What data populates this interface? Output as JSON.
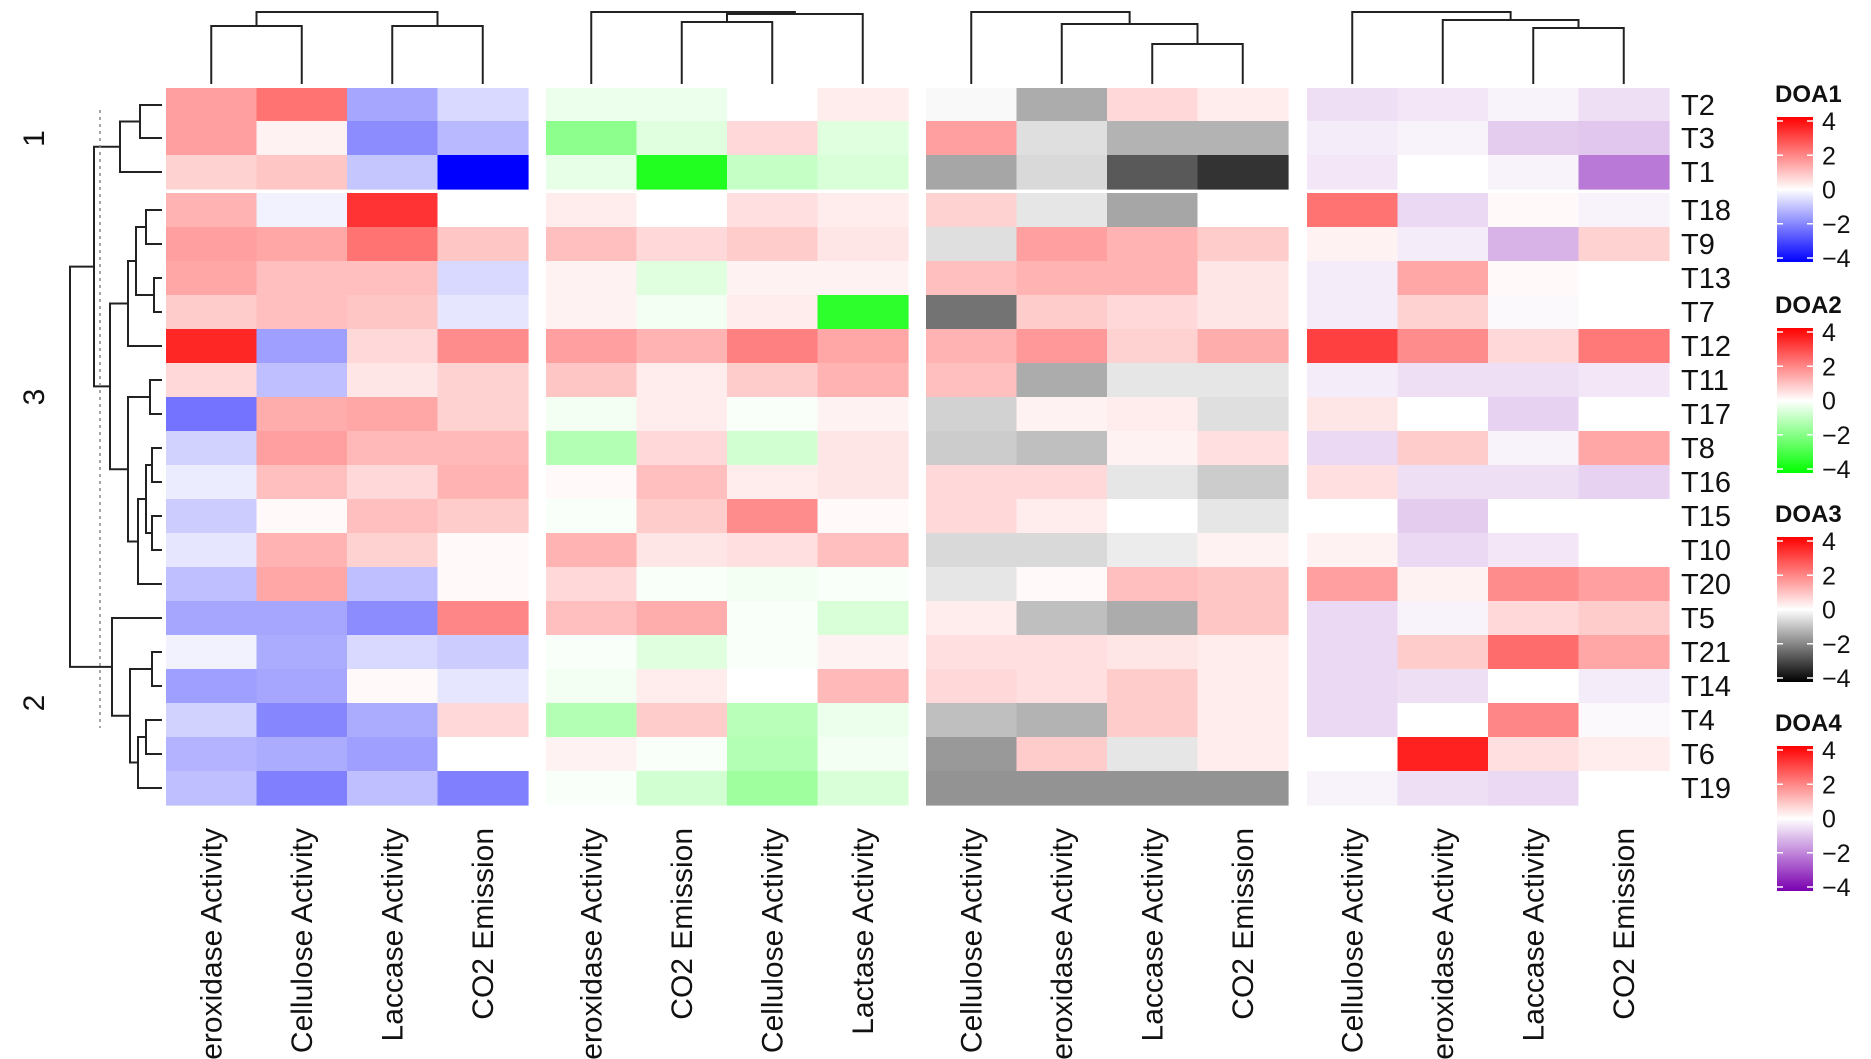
{
  "chart_data": {
    "type": "heatmap",
    "title": "",
    "rows": [
      "T2",
      "T3",
      "T1",
      "T18",
      "T9",
      "T13",
      "T7",
      "T12",
      "T11",
      "T17",
      "T8",
      "T16",
      "T15",
      "T10",
      "T20",
      "T5",
      "T21",
      "T14",
      "T4",
      "T6",
      "T19"
    ],
    "row_clusters": [
      {
        "label": "1",
        "rows": [
          "T2",
          "T3",
          "T1"
        ]
      },
      {
        "label": "3",
        "rows": [
          "T18",
          "T9",
          "T13",
          "T7",
          "T12",
          "T11",
          "T17",
          "T8",
          "T16",
          "T15",
          "T10",
          "T20"
        ]
      },
      {
        "label": "2",
        "rows": [
          "T5",
          "T21",
          "T14",
          "T4",
          "T6",
          "T19"
        ]
      }
    ],
    "panels": [
      {
        "name": "DOA1",
        "columns": [
          "Peroxidase Activity",
          "Cellulose Activity",
          "Laccase Activity",
          "CO2 Emission"
        ],
        "values": [
          [
            1.5,
            2.2,
            -1.4,
            -0.6
          ],
          [
            1.5,
            0.2,
            -1.8,
            -1.1
          ],
          [
            0.7,
            0.9,
            -0.9,
            -4.0
          ],
          [
            1.2,
            -0.2,
            3.2,
            0.0
          ],
          [
            1.5,
            1.4,
            2.2,
            0.9
          ],
          [
            1.4,
            1.0,
            1.0,
            -0.6
          ],
          [
            0.8,
            1.0,
            0.9,
            -0.4
          ],
          [
            3.4,
            -1.5,
            0.6,
            1.8
          ],
          [
            0.6,
            -1.0,
            0.4,
            0.7
          ],
          [
            -2.2,
            1.3,
            1.4,
            0.7
          ],
          [
            -0.7,
            1.5,
            1.1,
            1.1
          ],
          [
            -0.3,
            1.0,
            0.6,
            1.2
          ],
          [
            -0.8,
            0.1,
            1.0,
            0.8
          ],
          [
            -0.4,
            1.2,
            0.7,
            0.1
          ],
          [
            -1.0,
            1.4,
            -1.0,
            0.1
          ],
          [
            -1.4,
            -1.4,
            -1.8,
            1.9
          ],
          [
            -0.2,
            -1.3,
            -0.6,
            -0.8
          ],
          [
            -1.5,
            -1.4,
            0.1,
            -0.4
          ],
          [
            -0.7,
            -1.9,
            -1.3,
            0.6
          ],
          [
            -1.2,
            -1.3,
            -1.5,
            0.0
          ],
          [
            -1.0,
            -2.0,
            -1.0,
            -2.0
          ]
        ]
      },
      {
        "name": "DOA2",
        "columns": [
          "Peroxidase Activity",
          "CO2 Emission",
          "Cellulose Activity",
          "Lactase Activity"
        ],
        "values": [
          [
            -0.3,
            -0.3,
            0.0,
            0.3
          ],
          [
            -1.8,
            -0.5,
            0.6,
            -0.5
          ],
          [
            -0.4,
            -3.5,
            -0.9,
            -0.6
          ],
          [
            0.3,
            0.0,
            0.5,
            0.3
          ],
          [
            1.0,
            0.6,
            0.8,
            0.4
          ],
          [
            0.2,
            -0.5,
            0.2,
            0.2
          ],
          [
            0.2,
            -0.2,
            0.3,
            -3.3
          ],
          [
            1.5,
            1.2,
            2.0,
            1.4
          ],
          [
            0.9,
            0.3,
            0.8,
            1.2
          ],
          [
            -0.2,
            0.3,
            -0.1,
            0.2
          ],
          [
            -1.2,
            0.6,
            -0.7,
            0.4
          ],
          [
            0.1,
            1.0,
            0.3,
            0.4
          ],
          [
            -0.1,
            0.8,
            1.8,
            0.1
          ],
          [
            1.2,
            0.4,
            0.5,
            1.0
          ],
          [
            0.6,
            -0.1,
            -0.2,
            -0.1
          ],
          [
            1.0,
            1.3,
            -0.1,
            -0.6
          ],
          [
            -0.1,
            -0.5,
            -0.1,
            0.2
          ],
          [
            -0.2,
            0.3,
            0.0,
            1.1
          ],
          [
            -1.2,
            0.8,
            -1.1,
            -0.3
          ],
          [
            0.2,
            -0.1,
            -1.2,
            -0.2
          ],
          [
            -0.1,
            -0.7,
            -1.5,
            -0.6
          ]
        ]
      },
      {
        "name": "DOA3",
        "columns": [
          "Cellulose Activity",
          "Peroxidase Activity",
          "Laccase Activity",
          "CO2 Emission"
        ],
        "values": [
          [
            -0.1,
            -1.3,
            0.6,
            0.3
          ],
          [
            1.5,
            -0.5,
            -1.2,
            -1.2
          ],
          [
            -1.4,
            -0.6,
            -2.6,
            -3.2
          ],
          [
            0.7,
            -0.4,
            -1.4,
            0.0
          ],
          [
            -0.5,
            1.5,
            1.2,
            0.8
          ],
          [
            1.0,
            1.2,
            1.2,
            0.4
          ],
          [
            -2.2,
            0.8,
            0.6,
            0.4
          ],
          [
            1.2,
            1.6,
            0.7,
            1.3
          ],
          [
            1.0,
            -1.3,
            -0.4,
            -0.4
          ],
          [
            -0.7,
            0.2,
            0.3,
            -0.5
          ],
          [
            -0.8,
            -1.0,
            0.2,
            0.5
          ],
          [
            0.6,
            0.6,
            -0.4,
            -0.8
          ],
          [
            0.6,
            0.3,
            0.0,
            -0.4
          ],
          [
            -0.6,
            -0.6,
            -0.3,
            0.2
          ],
          [
            -0.4,
            0.1,
            1.0,
            0.9
          ],
          [
            0.3,
            -1.0,
            -1.3,
            0.9
          ],
          [
            0.5,
            0.5,
            0.4,
            0.3
          ],
          [
            0.6,
            0.5,
            0.8,
            0.3
          ],
          [
            -1.0,
            -1.2,
            0.8,
            0.3
          ],
          [
            -1.6,
            0.8,
            -0.4,
            0.3
          ],
          [
            -1.7,
            -1.7,
            -1.7,
            -1.7
          ]
        ]
      },
      {
        "name": "DOA4",
        "columns": [
          "Cellulose Activity",
          "Peroxidase Activity",
          "Laccase Activity",
          "CO2 Emission"
        ],
        "values": [
          [
            -0.5,
            -0.4,
            -0.2,
            -0.5
          ],
          [
            -0.3,
            -0.2,
            -0.8,
            -0.9
          ],
          [
            -0.4,
            0.0,
            -0.2,
            -2.1
          ],
          [
            2.2,
            -0.6,
            0.1,
            -0.2
          ],
          [
            0.2,
            -0.3,
            -1.2,
            0.7
          ],
          [
            -0.3,
            1.4,
            0.1,
            0.0
          ],
          [
            -0.3,
            0.7,
            -0.1,
            0.0
          ],
          [
            3.0,
            1.8,
            0.6,
            2.1
          ],
          [
            -0.3,
            -0.5,
            -0.5,
            -0.4
          ],
          [
            0.4,
            0.0,
            -0.7,
            0.0
          ],
          [
            -0.6,
            0.8,
            -0.2,
            1.4
          ],
          [
            0.5,
            -0.5,
            -0.5,
            -0.7
          ],
          [
            0.0,
            -0.8,
            0.0,
            0.0
          ],
          [
            0.2,
            -0.6,
            -0.4,
            0.0
          ],
          [
            1.5,
            0.2,
            1.8,
            1.5
          ],
          [
            -0.6,
            -0.2,
            0.6,
            0.8
          ],
          [
            -0.6,
            0.8,
            2.3,
            1.4
          ],
          [
            -0.6,
            -0.5,
            0.0,
            -0.3
          ],
          [
            -0.6,
            0.0,
            1.9,
            -0.1
          ],
          [
            0.0,
            3.5,
            0.5,
            0.3
          ],
          [
            -0.2,
            -0.5,
            -0.6,
            0.0
          ]
        ]
      }
    ],
    "legends": [
      {
        "title": "DOA1",
        "ticks": [
          "4",
          "2",
          "0",
          "−2",
          "−4"
        ],
        "colors": {
          "high": "#ff0000",
          "mid": "#ffffff",
          "low": "#0000ff"
        }
      },
      {
        "title": "DOA2",
        "ticks": [
          "4",
          "2",
          "0",
          "−2",
          "−4"
        ],
        "colors": {
          "high": "#ff0000",
          "mid": "#ffffff",
          "low": "#00ff00"
        }
      },
      {
        "title": "DOA3",
        "ticks": [
          "4",
          "2",
          "0",
          "−2",
          "−4"
        ],
        "colors": {
          "high": "#ff0000",
          "mid": "#ffffff",
          "low": "#000000"
        }
      },
      {
        "title": "DOA4",
        "ticks": [
          "4",
          "2",
          "0",
          "−2",
          "−4"
        ],
        "colors": {
          "high": "#ff0000",
          "mid": "#ffffff",
          "low": "#7a00b0"
        }
      }
    ],
    "value_range": [
      -4,
      4
    ]
  }
}
